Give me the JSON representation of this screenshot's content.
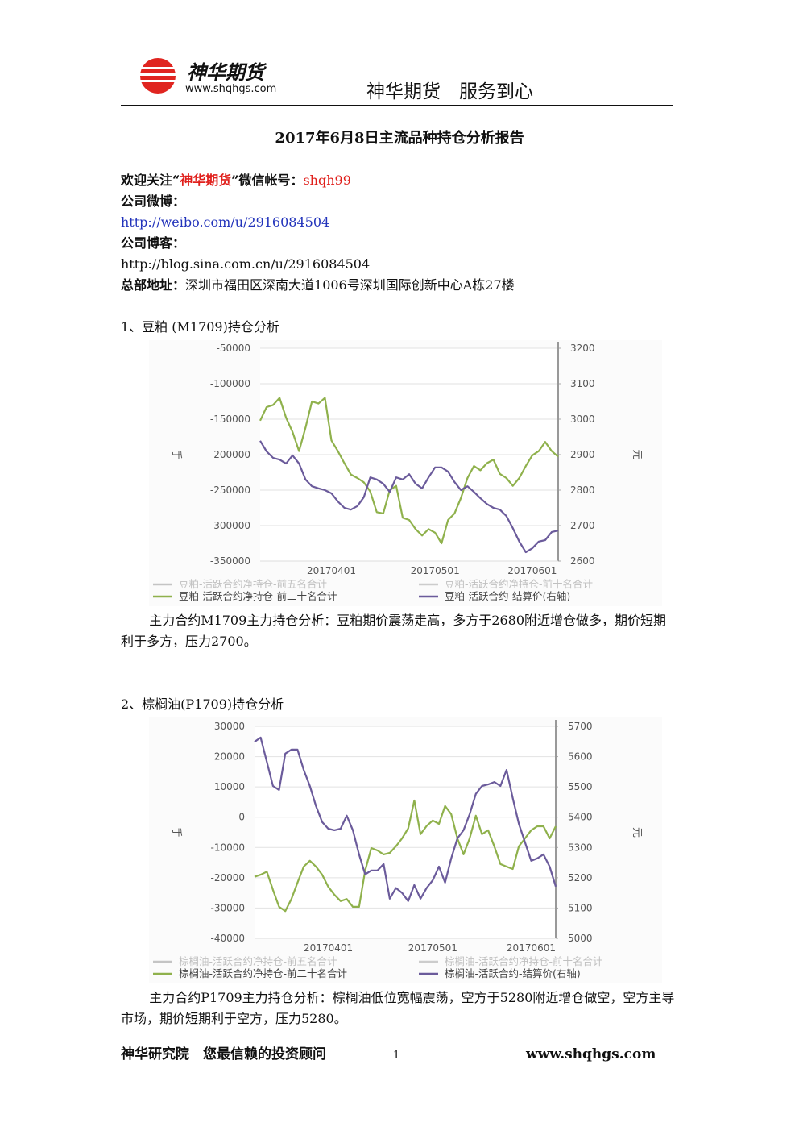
{
  "header": {
    "logo_name": "神华期货",
    "logo_url": "www.shqhgs.com",
    "slogan": "神华期货　服务到心"
  },
  "title": "2017年6月8日主流品种持仓分析报告",
  "intro": {
    "follow_prefix": "欢迎关注“",
    "follow_name": "神华期货",
    "follow_suffix": "”微信帐号：",
    "wechat_id": "shqh99",
    "weibo_label": "公司微博：",
    "weibo_url": "http://weibo.com/u/2916084504",
    "blog_label": "公司博客：",
    "blog_url": "http://blog.sina.com.cn/u/2916084504",
    "address_label": "总部地址：",
    "address": "深圳市福田区深南大道1006号深圳国际创新中心A栋27楼"
  },
  "sections": [
    {
      "heading": "1、豆粕 (M1709)持仓分析",
      "chart": {
        "type": "line",
        "ylabel": "手",
        "y2label": "元",
        "categories": [
          null,
          null,
          null,
          null,
          null,
          null,
          null,
          null,
          null,
          null,
          null,
          "20170401",
          null,
          null,
          null,
          null,
          null,
          null,
          null,
          null,
          null,
          null,
          null,
          null,
          null,
          null,
          null,
          "20170501",
          null,
          null,
          null,
          null,
          null,
          null,
          null,
          null,
          null,
          null,
          null,
          null,
          null,
          null,
          "20170601",
          null,
          null,
          null,
          null
        ],
        "ylim": [
          -350000,
          -50000
        ],
        "yticks": [
          -350000,
          -300000,
          -250000,
          -200000,
          -150000,
          -100000,
          -50000
        ],
        "y2lim": [
          2600,
          3200
        ],
        "y2ticks": [
          2600,
          2700,
          2800,
          2900,
          3000,
          3100,
          3200
        ],
        "grid": true,
        "series": [
          {
            "name": "豆粕-活跃合约净持仓-前五名合计",
            "color": "#c4c4c4",
            "values": [
              null,
              null,
              null,
              null,
              null,
              null,
              null,
              null,
              null,
              null,
              null,
              null,
              null,
              null,
              null,
              null,
              null,
              null,
              null,
              null,
              null,
              null,
              null,
              null,
              null,
              null,
              null,
              null,
              null,
              null,
              null,
              null,
              null,
              null,
              null,
              null,
              null,
              null,
              null,
              null,
              null,
              null,
              null,
              null,
              null,
              null,
              null
            ]
          },
          {
            "name": "豆粕-活跃合约净持仓-前十名合计",
            "color": "#cccccc",
            "values": [
              null,
              null,
              null,
              null,
              null,
              null,
              null,
              null,
              null,
              null,
              null,
              null,
              null,
              null,
              null,
              null,
              null,
              null,
              null,
              null,
              null,
              null,
              null,
              null,
              null,
              null,
              null,
              null,
              null,
              null,
              null,
              null,
              null,
              null,
              null,
              null,
              null,
              null,
              null,
              null,
              null,
              null,
              null,
              null,
              null,
              null,
              null
            ]
          },
          {
            "name": "豆粕-活跃合约净持仓-前二十名合计",
            "color": "#8fb14c",
            "values": [
              -152000,
              -133000,
              -130000,
              -120000,
              -148000,
              -168000,
              -195000,
              -162000,
              -125000,
              -128000,
              -120000,
              -180000,
              -195000,
              -212000,
              -228000,
              -233000,
              -239000,
              -252000,
              -281000,
              -283000,
              -250000,
              -244000,
              -289000,
              -292000,
              -305000,
              -314000,
              -305000,
              -310000,
              -325000,
              -292000,
              -283000,
              -261000,
              -233000,
              -216000,
              -222000,
              -212000,
              -207000,
              -227000,
              -233000,
              -244000,
              -233000,
              -216000,
              -201000,
              -195000,
              -182000,
              -195000,
              -203000
            ]
          },
          {
            "name": "豆粕-活跃合约-结算价(右轴)",
            "color": "#6b5b9b",
            "axis": "y2",
            "values": [
              2939,
              2909,
              2891,
              2886,
              2875,
              2898,
              2875,
              2830,
              2811,
              2805,
              2800,
              2791,
              2768,
              2750,
              2745,
              2755,
              2780,
              2836,
              2830,
              2818,
              2795,
              2836,
              2830,
              2845,
              2818,
              2805,
              2836,
              2864,
              2864,
              2852,
              2823,
              2800,
              2811,
              2795,
              2777,
              2761,
              2750,
              2745,
              2727,
              2693,
              2655,
              2625,
              2636,
              2655,
              2659,
              2682,
              2686
            ]
          }
        ]
      },
      "analysis": "主力合约M1709主力持仓分析：豆粕期价震荡走高，多方于2680附近增仓做多，期价短期利于多方，压力2700。"
    },
    {
      "heading": "2、棕榈油(P1709)持仓分析",
      "chart": {
        "type": "line",
        "ylabel": "手",
        "y2label": "元",
        "categories": [
          null,
          null,
          null,
          null,
          null,
          null,
          null,
          null,
          null,
          null,
          null,
          null,
          "20170401",
          null,
          null,
          null,
          null,
          null,
          null,
          null,
          null,
          null,
          null,
          null,
          null,
          null,
          null,
          null,
          null,
          "20170501",
          null,
          null,
          null,
          null,
          null,
          null,
          null,
          null,
          null,
          null,
          null,
          null,
          null,
          null,
          null,
          "20170601",
          null,
          null,
          null,
          null
        ],
        "ylim": [
          -40000,
          30000
        ],
        "yticks": [
          -40000,
          -30000,
          -20000,
          -10000,
          0,
          10000,
          20000,
          30000
        ],
        "y2lim": [
          5000,
          5700
        ],
        "y2ticks": [
          5000,
          5100,
          5200,
          5300,
          5400,
          5500,
          5600,
          5700
        ],
        "grid": true,
        "series": [
          {
            "name": "棕榈油-活跃合约净持仓-前五名合计",
            "color": "#c4c4c4",
            "values": [
              null,
              null,
              null,
              null,
              null,
              null,
              null,
              null,
              null,
              null,
              null,
              null,
              null,
              null,
              null,
              null,
              null,
              null,
              null,
              null,
              null,
              null,
              null,
              null,
              null,
              null,
              null,
              null,
              null,
              null,
              null,
              null,
              null,
              null,
              null,
              null,
              null,
              null,
              null,
              null,
              null,
              null,
              null,
              null,
              null,
              null,
              null,
              null,
              null,
              null
            ]
          },
          {
            "name": "棕榈油-活跃合约净持仓-前十名合计",
            "color": "#cccccc",
            "values": [
              null,
              null,
              null,
              null,
              null,
              null,
              null,
              null,
              null,
              null,
              null,
              null,
              null,
              null,
              null,
              null,
              null,
              null,
              null,
              null,
              null,
              null,
              null,
              null,
              null,
              null,
              null,
              null,
              null,
              null,
              null,
              null,
              null,
              null,
              null,
              null,
              null,
              null,
              null,
              null,
              null,
              null,
              null,
              null,
              null,
              null,
              null,
              null,
              null,
              null
            ]
          },
          {
            "name": "棕榈油-活跃合约净持仓-前二十名合计",
            "color": "#8fb14c",
            "values": [
              -19700,
              -19000,
              -18000,
              -24000,
              -29600,
              -31000,
              -27000,
              -21600,
              -16300,
              -14400,
              -16300,
              -19000,
              -23000,
              -25600,
              -27700,
              -27000,
              -29600,
              -29600,
              -17600,
              -10200,
              -11000,
              -12300,
              -11800,
              -9600,
              -7000,
              -3700,
              5500,
              -5600,
              -2900,
              -1100,
              -2200,
              3700,
              1000,
              -7000,
              -12300,
              -7000,
              500,
              -5600,
              -4300,
              -9600,
              -15500,
              -16300,
              -17100,
              -9600,
              -7000,
              -4300,
              -3000,
              -3000,
              -7000,
              -3000
            ]
          },
          {
            "name": "棕榈油-活跃合约-结算价(右轴)",
            "color": "#6b5b9b",
            "axis": "y2",
            "values": [
              5649,
              5663,
              5583,
              5503,
              5490,
              5610,
              5623,
              5623,
              5556,
              5503,
              5437,
              5384,
              5362,
              5357,
              5362,
              5405,
              5357,
              5277,
              5211,
              5224,
              5224,
              5245,
              5131,
              5166,
              5150,
              5123,
              5176,
              5131,
              5166,
              5192,
              5237,
              5184,
              5264,
              5330,
              5357,
              5410,
              5477,
              5503,
              5508,
              5516,
              5503,
              5556,
              5463,
              5378,
              5317,
              5256,
              5264,
              5277,
              5237,
              5171
            ]
          }
        ]
      },
      "analysis": "主力合约P1709主力持仓分析：棕榈油低位宽幅震荡，空方于5280附近增仓做空，空方主导市场，期价短期利于空方，压力5280。"
    }
  ],
  "footer": {
    "left": "神华研究院　您最信赖的投资顾问",
    "page": "1",
    "right": "www.shqhgs.com"
  }
}
